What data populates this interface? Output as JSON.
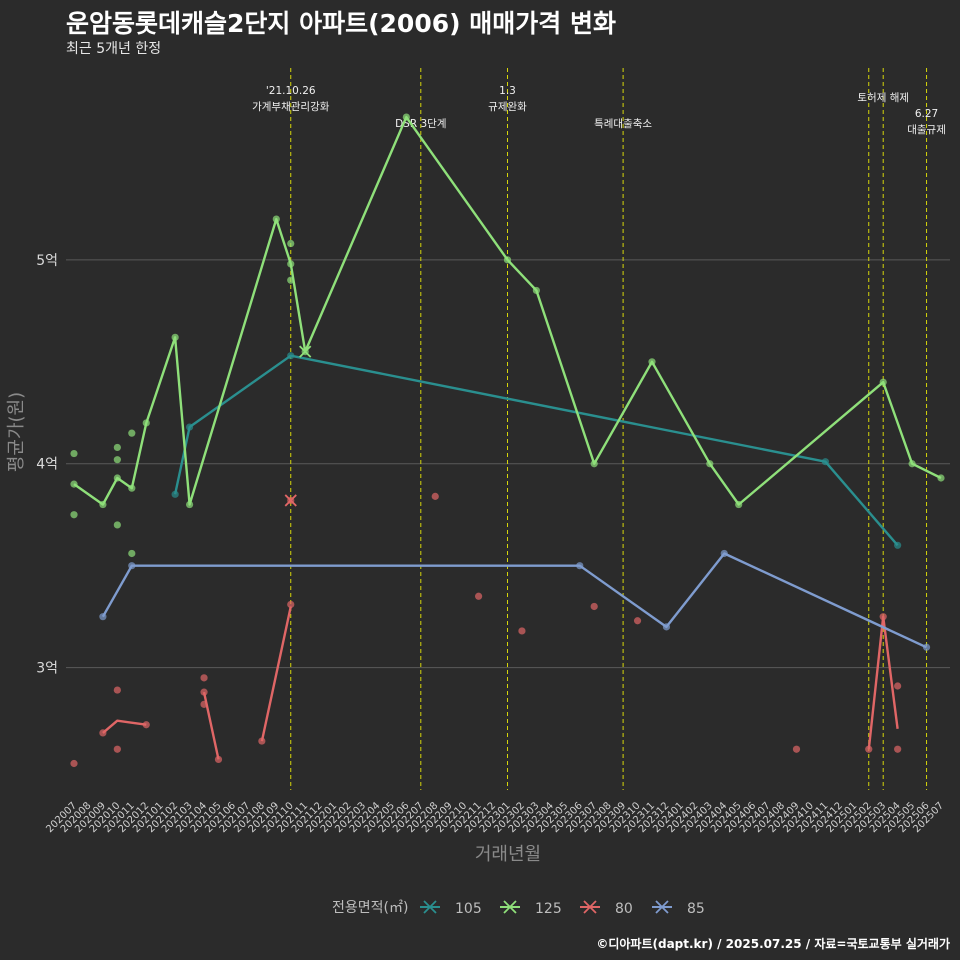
{
  "title": "운암동롯데캐슬2단지 아파트(2006) 매매가격 변화",
  "subtitle": "최근 5개년 한정",
  "caption": "©디아파트(dapt.kr) / 2025.07.25 / 자료=국토교통부 실거래가",
  "chart_data": {
    "type": "line",
    "xlabel": "거래년월",
    "ylabel": "평균가(원)",
    "ylim": [
      2.4,
      5.98
    ],
    "y_ticks": [
      {
        "value": 3,
        "label": "3억"
      },
      {
        "value": 4,
        "label": "4억"
      },
      {
        "value": 5,
        "label": "5억"
      }
    ],
    "categories": [
      "202007",
      "202008",
      "202009",
      "202010",
      "202011",
      "202012",
      "202101",
      "202102",
      "202103",
      "202104",
      "202105",
      "202106",
      "202107",
      "202108",
      "202109",
      "202110",
      "202111",
      "202112",
      "202201",
      "202202",
      "202203",
      "202204",
      "202205",
      "202206",
      "202207",
      "202208",
      "202209",
      "202210",
      "202211",
      "202212",
      "202301",
      "202302",
      "202303",
      "202304",
      "202305",
      "202306",
      "202307",
      "202308",
      "202309",
      "202310",
      "202311",
      "202312",
      "202401",
      "202402",
      "202403",
      "202404",
      "202405",
      "202406",
      "202407",
      "202408",
      "202409",
      "202410",
      "202411",
      "202412",
      "202501",
      "202502",
      "202503",
      "202504",
      "202505",
      "202506",
      "202507"
    ],
    "grid": true,
    "legend": {
      "title": "전용면적(㎡)",
      "position": "bottom"
    },
    "series": [
      {
        "name": "105",
        "color": "#2a8f8f",
        "line": [
          [
            "202102",
            3.85
          ],
          [
            "202103",
            4.18
          ],
          [
            "202110",
            4.53
          ],
          [
            "202411",
            4.01
          ],
          [
            "202504",
            3.6
          ]
        ],
        "points": [
          [
            "202102",
            3.85
          ],
          [
            "202103",
            4.18
          ],
          [
            "202110",
            4.53
          ],
          [
            "202411",
            4.01
          ],
          [
            "202504",
            3.6
          ]
        ],
        "cancel": []
      },
      {
        "name": "125",
        "color": "#8fe07a",
        "line": [
          [
            "202007",
            3.9
          ],
          [
            "202009",
            3.8
          ],
          [
            "202010",
            3.93
          ],
          [
            "202011",
            3.88
          ],
          [
            "202012",
            4.2
          ],
          [
            "202102",
            4.62
          ],
          [
            "202103",
            3.8
          ],
          [
            "202109",
            5.2
          ],
          [
            "202110",
            4.98
          ],
          [
            "202111",
            4.55
          ],
          [
            "202206",
            5.7
          ],
          [
            "202301",
            5.0
          ],
          [
            "202303",
            4.85
          ],
          [
            "202307",
            4.0
          ],
          [
            "202311",
            4.5
          ],
          [
            "202403",
            4.0
          ],
          [
            "202405",
            3.8
          ],
          [
            "202503",
            4.4
          ],
          [
            "202505",
            4.0
          ],
          [
            "202507",
            3.93
          ]
        ],
        "points": [
          [
            "202007",
            4.05
          ],
          [
            "202007",
            3.9
          ],
          [
            "202007",
            3.75
          ],
          [
            "202009",
            3.8
          ],
          [
            "202010",
            4.08
          ],
          [
            "202010",
            4.02
          ],
          [
            "202010",
            3.93
          ],
          [
            "202010",
            3.7
          ],
          [
            "202011",
            4.15
          ],
          [
            "202011",
            3.88
          ],
          [
            "202011",
            3.56
          ],
          [
            "202012",
            4.2
          ],
          [
            "202102",
            4.62
          ],
          [
            "202103",
            3.8
          ],
          [
            "202109",
            5.2
          ],
          [
            "202110",
            5.08
          ],
          [
            "202110",
            4.98
          ],
          [
            "202110",
            4.9
          ],
          [
            "202206",
            5.7
          ],
          [
            "202301",
            5.0
          ],
          [
            "202303",
            4.85
          ],
          [
            "202307",
            4.0
          ],
          [
            "202311",
            4.5
          ],
          [
            "202403",
            4.0
          ],
          [
            "202405",
            3.8
          ],
          [
            "202503",
            4.4
          ],
          [
            "202505",
            4.0
          ],
          [
            "202507",
            3.93
          ]
        ],
        "cancel": [
          [
            "202111",
            4.55
          ]
        ]
      },
      {
        "name": "80",
        "color": "#e06666",
        "line": [
          [
            "202009",
            2.68
          ],
          [
            "202010",
            2.74
          ],
          [
            "202012",
            2.72
          ],
          [
            "__gap__",
            0
          ],
          [
            "202104",
            2.88
          ],
          [
            "202105",
            2.55
          ],
          [
            "__gap__",
            0
          ],
          [
            "202108",
            2.64
          ],
          [
            "202110",
            3.3
          ],
          [
            "__gap__",
            0
          ],
          [
            "202502",
            2.6
          ],
          [
            "202503",
            3.25
          ],
          [
            "202504",
            2.7
          ]
        ],
        "points": [
          [
            "202007",
            2.53
          ],
          [
            "202009",
            2.68
          ],
          [
            "202010",
            2.89
          ],
          [
            "202010",
            2.6
          ],
          [
            "202012",
            2.72
          ],
          [
            "202104",
            2.95
          ],
          [
            "202104",
            2.88
          ],
          [
            "202104",
            2.82
          ],
          [
            "202105",
            2.55
          ],
          [
            "202108",
            2.64
          ],
          [
            "202110",
            3.31
          ],
          [
            "202208",
            3.84
          ],
          [
            "202211",
            3.35
          ],
          [
            "202302",
            3.18
          ],
          [
            "202307",
            3.3
          ],
          [
            "202310",
            3.23
          ],
          [
            "202409",
            2.6
          ],
          [
            "202502",
            2.6
          ],
          [
            "202503",
            3.25
          ],
          [
            "202504",
            2.91
          ],
          [
            "202504",
            2.6
          ]
        ],
        "cancel": [
          [
            "202110",
            3.82
          ]
        ]
      },
      {
        "name": "85",
        "color": "#7f9ccf",
        "line": [
          [
            "202009",
            3.25
          ],
          [
            "202011",
            3.5
          ],
          [
            "202306",
            3.5
          ],
          [
            "202312",
            3.2
          ],
          [
            "202404",
            3.56
          ],
          [
            "202506",
            3.1
          ]
        ],
        "points": [
          [
            "202009",
            3.25
          ],
          [
            "202011",
            3.5
          ],
          [
            "202306",
            3.5
          ],
          [
            "202312",
            3.2
          ],
          [
            "202404",
            3.56
          ],
          [
            "202506",
            3.1
          ]
        ],
        "cancel": []
      }
    ],
    "events": [
      {
        "month": "202110",
        "labels": [
          "'21.10.26",
          "가계부채관리강화"
        ],
        "row": 0
      },
      {
        "month": "202207",
        "labels": [
          "DSR 3단계"
        ],
        "row": 2
      },
      {
        "month": "202301",
        "labels": [
          "1.3",
          "규제완화"
        ],
        "row": 0
      },
      {
        "month": "202309",
        "labels": [
          "특례대출축소"
        ],
        "row": 2
      },
      {
        "month": "202502",
        "labels": [],
        "row": 1
      },
      {
        "month": "202503",
        "labels": [
          "토허제 해제"
        ],
        "row": 1
      },
      {
        "month": "202506",
        "labels": [
          "6.27",
          "대출규제"
        ],
        "row": 3
      }
    ]
  }
}
